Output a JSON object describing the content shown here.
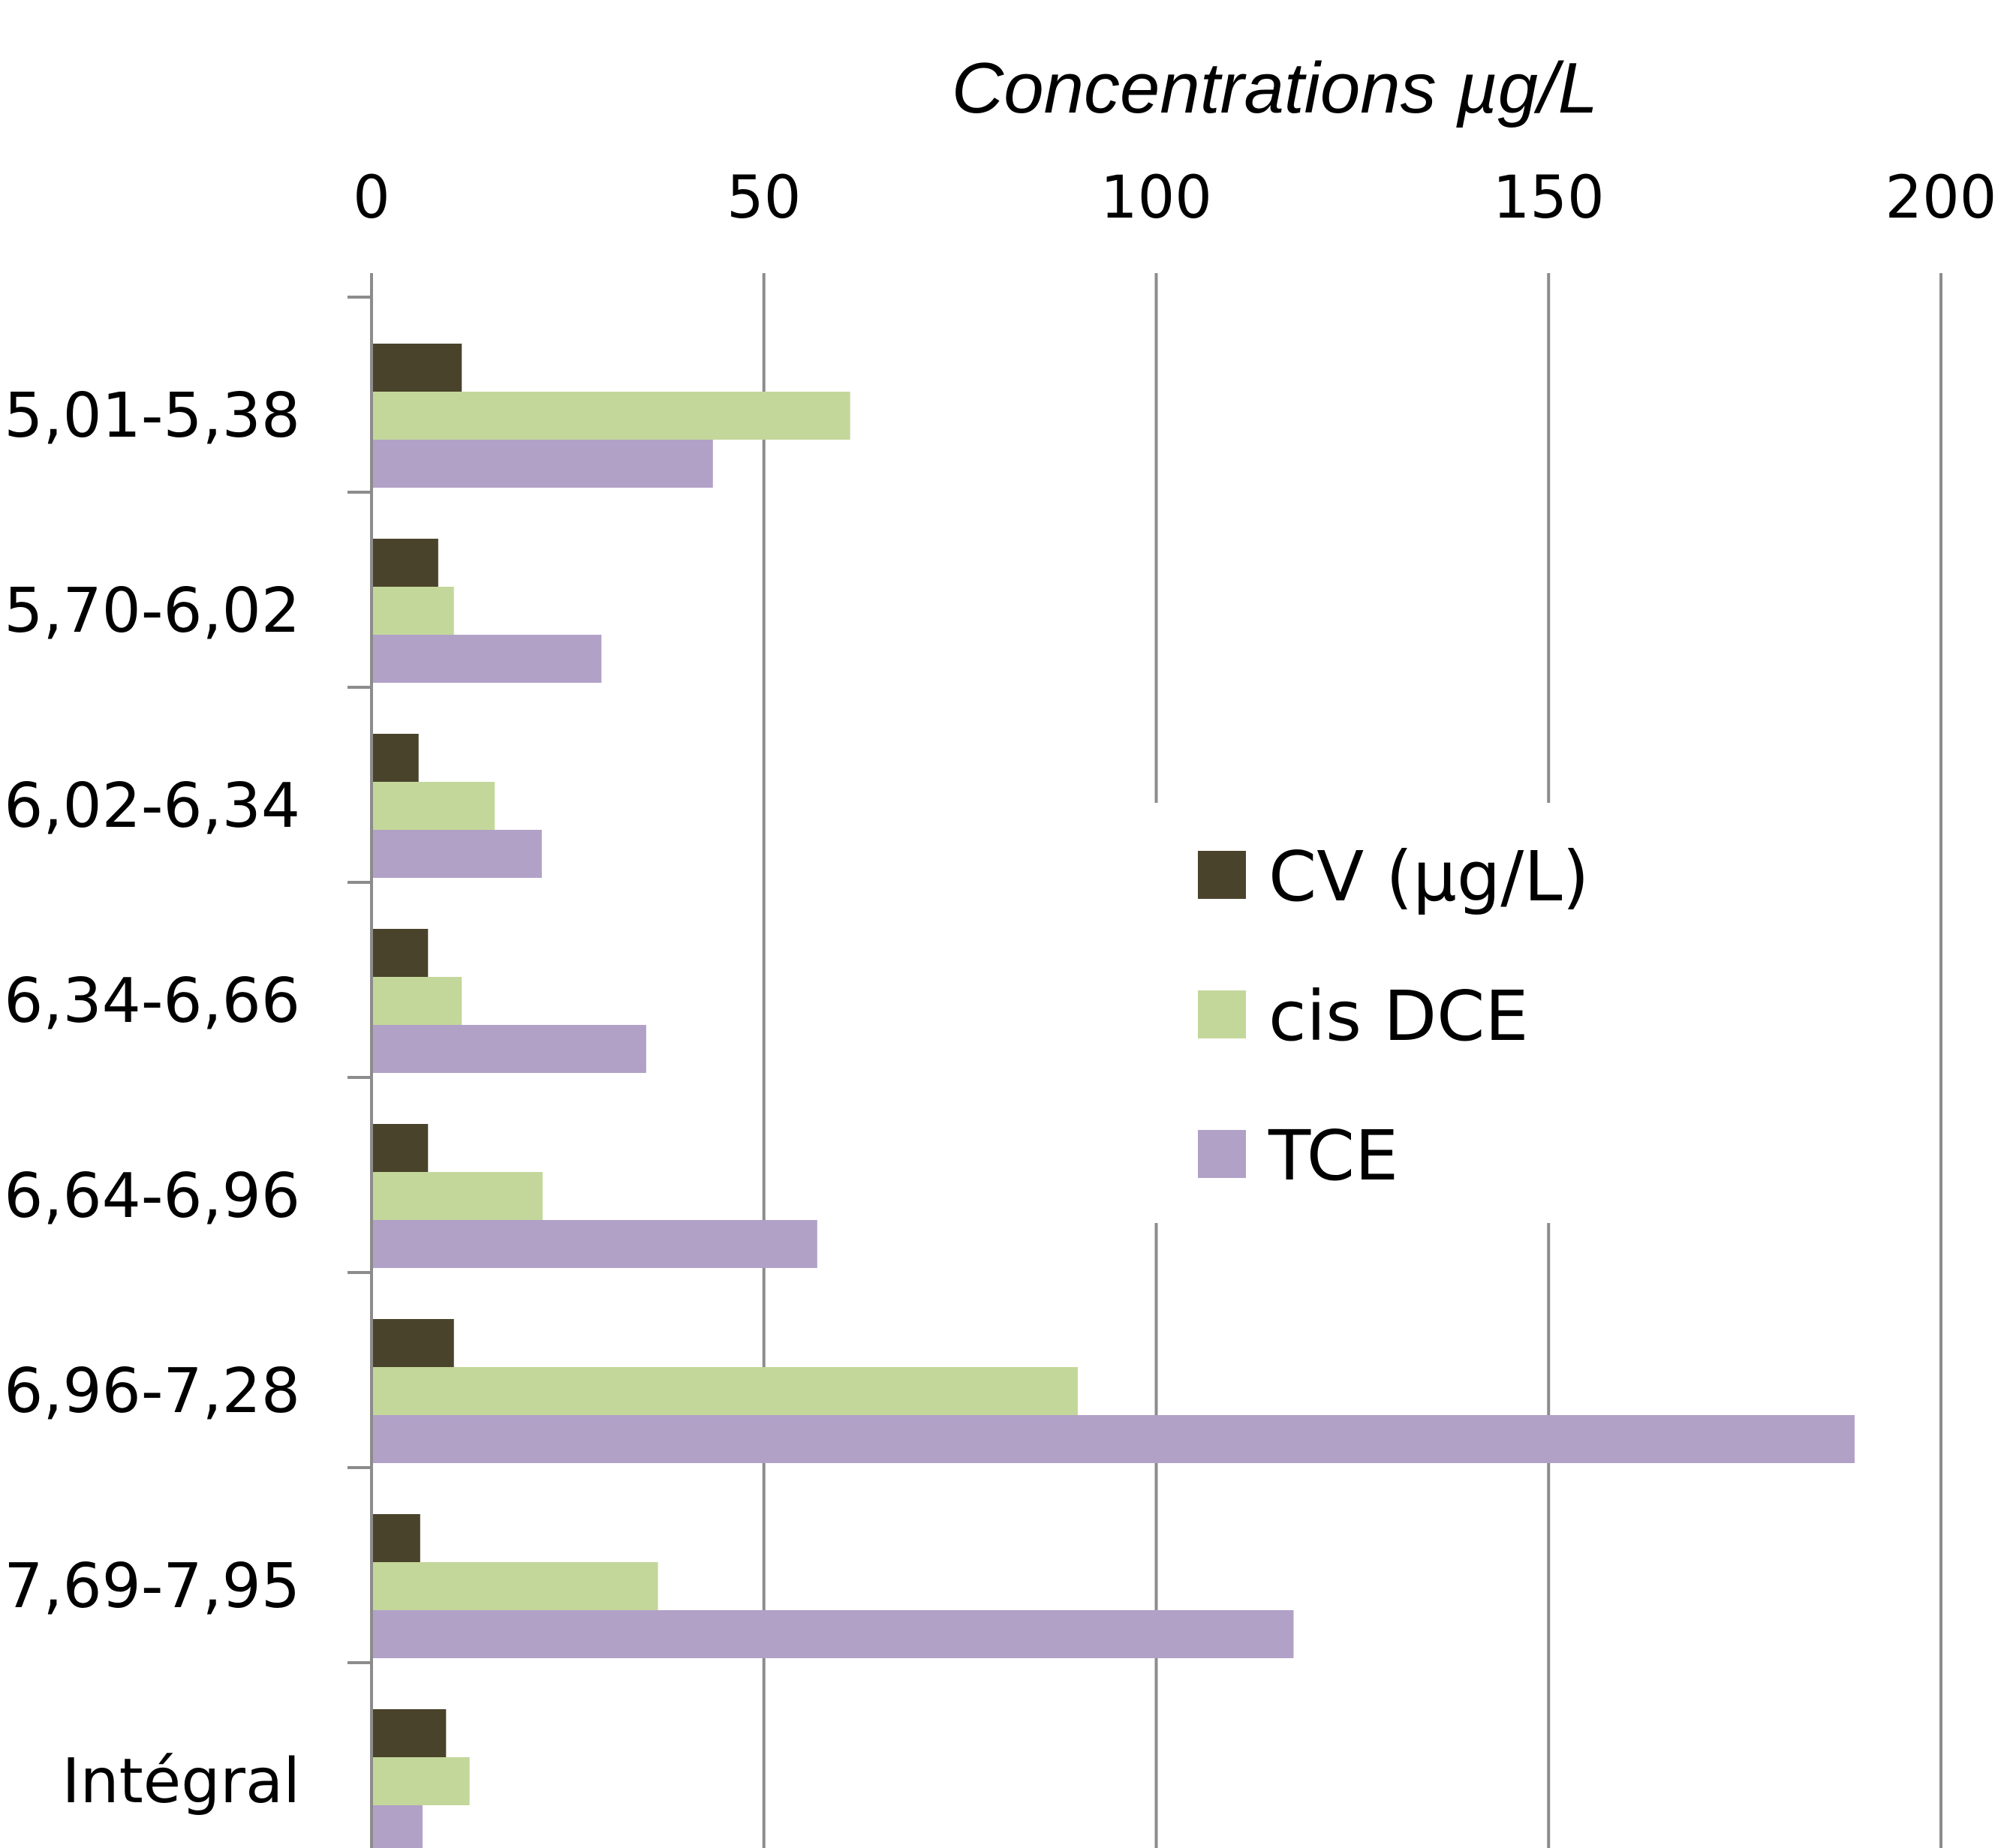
{
  "chart_data": {
    "type": "bar",
    "orientation": "horizontal",
    "xlabel": "Concentrations µg/L",
    "xlim": [
      0,
      200
    ],
    "xticks": [
      "0",
      "50",
      "100",
      "150",
      "200"
    ],
    "grid": "vertical",
    "legend_position": "center-right",
    "categories": [
      "5,01-5,38",
      "5,70-6,02",
      "6,02-6,34",
      "6,34-6,66",
      "6,64-6,96",
      "6,96-7,28",
      "7,69-7,95",
      "Intégral"
    ],
    "series": [
      {
        "name": "CV (µg/L)",
        "color": "#4a432b",
        "values": [
          11.5,
          8.5,
          6,
          7.2,
          7.2,
          10.5,
          6.2,
          9.5
        ]
      },
      {
        "name": "cis DCE",
        "color": "#c4d79b",
        "values": [
          61,
          10.5,
          15.7,
          11.5,
          21.8,
          90,
          36.5,
          12.5
        ]
      },
      {
        "name": "TCE",
        "color": "#b1a1c7",
        "values": [
          43.5,
          29.3,
          21.7,
          35,
          56.8,
          189,
          117.5,
          6.5
        ]
      }
    ]
  }
}
